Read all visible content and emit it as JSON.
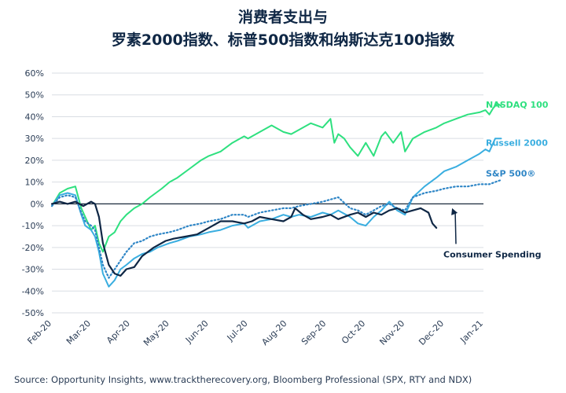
{
  "title_line1": "消费者支出与",
  "title_line2": "罗素2000指数、标普500指数和纳斯达克100指数",
  "source": "Source: Opportunity Insights, www.tracktherecovery.org, Bloomberg Professional (SPX, RTY and NDX)",
  "colors": {
    "nasdaq": "#2ee07f",
    "russell": "#3aaee0",
    "sp500": "#2f86c6",
    "consumer": "#0f2745",
    "grid": "#d9dde3",
    "zero": "#1a2a3c"
  },
  "chart_data": {
    "type": "line",
    "xlabel": "",
    "ylabel": "",
    "x_ticks": [
      "Feb-20",
      "Mar-20",
      "Apr-20",
      "May-20",
      "Jun-20",
      "Jul-20",
      "Aug-20",
      "Sep-20",
      "Oct-20",
      "Nov-20",
      "Dec-20",
      "Jan-21"
    ],
    "ylim": [
      -50,
      60
    ],
    "y_ticks": [
      60,
      50,
      40,
      30,
      20,
      10,
      0,
      -10,
      -20,
      -30,
      -40,
      -50
    ],
    "y_tick_labels": [
      "60%",
      "50%",
      "40%",
      "30%",
      "20%",
      "10%",
      "0%",
      "-10%",
      "-20%",
      "-30%",
      "-40%",
      "-50%"
    ],
    "grid": true,
    "annotation": "Consumer Spending",
    "series": [
      {
        "name": "NASDAQ 100",
        "key": "nasdaq",
        "style": "solid",
        "x": [
          0,
          0.2,
          0.4,
          0.6,
          0.75,
          0.85,
          1.0,
          1.1,
          1.2,
          1.3,
          1.45,
          1.6,
          1.75,
          1.9,
          2.1,
          2.3,
          2.5,
          2.8,
          3.0,
          3.2,
          3.5,
          3.8,
          4.0,
          4.3,
          4.6,
          4.9,
          5.0,
          5.3,
          5.6,
          5.9,
          6.1,
          6.3,
          6.6,
          6.9,
          7.1,
          7.2,
          7.3,
          7.45,
          7.6,
          7.8,
          8.0,
          8.2,
          8.4,
          8.5,
          8.7,
          8.9,
          9.0,
          9.2,
          9.5,
          9.8,
          10.0,
          10.3,
          10.6,
          10.9,
          11.05,
          11.15,
          11.25,
          11.35,
          11.45
        ],
        "values": [
          -1,
          5,
          7,
          8,
          -2,
          -6,
          -12,
          -10,
          -18,
          -22,
          -15,
          -13,
          -8,
          -5,
          -2,
          0,
          3,
          7,
          10,
          12,
          16,
          20,
          22,
          24,
          28,
          31,
          30,
          33,
          36,
          33,
          32,
          34,
          37,
          35,
          39,
          28,
          32,
          30,
          26,
          22,
          28,
          22,
          31,
          33,
          28,
          33,
          24,
          30,
          33,
          35,
          37,
          39,
          41,
          42,
          43,
          41,
          44,
          46,
          45
        ]
      },
      {
        "name": "Russell 2000",
        "key": "russell",
        "style": "solid",
        "x": [
          0,
          0.2,
          0.4,
          0.6,
          0.75,
          0.85,
          1.0,
          1.1,
          1.2,
          1.3,
          1.45,
          1.6,
          1.75,
          1.9,
          2.1,
          2.3,
          2.5,
          2.7,
          3.0,
          3.2,
          3.5,
          3.8,
          4.0,
          4.3,
          4.6,
          4.9,
          5.0,
          5.3,
          5.6,
          5.9,
          6.1,
          6.3,
          6.6,
          6.9,
          7.1,
          7.3,
          7.6,
          7.8,
          8.0,
          8.2,
          8.4,
          8.6,
          8.8,
          9.0,
          9.2,
          9.5,
          9.8,
          10.0,
          10.3,
          10.6,
          10.9,
          11.05,
          11.15,
          11.3,
          11.45
        ],
        "values": [
          -1,
          4,
          5,
          4,
          -5,
          -10,
          -12,
          -15,
          -22,
          -32,
          -38,
          -35,
          -30,
          -28,
          -25,
          -23,
          -22,
          -20,
          -18,
          -17,
          -15,
          -14,
          -13,
          -12,
          -10,
          -9,
          -11,
          -8,
          -7,
          -5,
          -6,
          -5,
          -6,
          -4,
          -5,
          -3,
          -6,
          -9,
          -10,
          -6,
          -3,
          1,
          -3,
          -5,
          3,
          8,
          12,
          15,
          17,
          20,
          23,
          25,
          24,
          30,
          30
        ]
      },
      {
        "name": "S&P 500®",
        "key": "sp500",
        "style": "dotted",
        "x": [
          0,
          0.2,
          0.4,
          0.6,
          0.75,
          0.85,
          1.0,
          1.1,
          1.2,
          1.3,
          1.45,
          1.6,
          1.75,
          1.9,
          2.1,
          2.3,
          2.5,
          2.7,
          3.0,
          3.2,
          3.5,
          3.8,
          4.0,
          4.3,
          4.6,
          4.9,
          5.0,
          5.3,
          5.6,
          5.9,
          6.1,
          6.3,
          6.6,
          6.9,
          7.1,
          7.3,
          7.6,
          7.8,
          8.0,
          8.2,
          8.4,
          8.6,
          8.8,
          9.0,
          9.2,
          9.5,
          9.8,
          10.0,
          10.3,
          10.6,
          10.9,
          11.05,
          11.15,
          11.3,
          11.45
        ],
        "values": [
          -1,
          3,
          4,
          3,
          -4,
          -8,
          -10,
          -12,
          -20,
          -28,
          -34,
          -30,
          -26,
          -22,
          -18,
          -17,
          -15,
          -14,
          -13,
          -12,
          -10,
          -9,
          -8,
          -7,
          -5,
          -5,
          -6,
          -4,
          -3,
          -2,
          -2,
          -1,
          0,
          1,
          2,
          3,
          -2,
          -3,
          -5,
          -3,
          -1,
          0,
          -2,
          -3,
          3,
          5,
          6,
          7,
          8,
          8,
          9,
          9,
          9,
          10,
          11
        ]
      },
      {
        "name": "Consumer Spending",
        "key": "consumer",
        "style": "solid",
        "x": [
          0,
          0.2,
          0.4,
          0.6,
          0.8,
          1.0,
          1.1,
          1.2,
          1.3,
          1.45,
          1.6,
          1.75,
          1.9,
          2.1,
          2.3,
          2.6,
          2.9,
          3.1,
          3.4,
          3.7,
          4.0,
          4.3,
          4.6,
          4.9,
          5.1,
          5.3,
          5.6,
          5.9,
          6.1,
          6.2,
          6.4,
          6.6,
          6.9,
          7.1,
          7.3,
          7.6,
          7.8,
          8.0,
          8.2,
          8.4,
          8.6,
          8.8,
          9.0,
          9.2,
          9.4,
          9.6,
          9.7,
          9.8
        ],
        "values": [
          0,
          1,
          0,
          1,
          -1,
          1,
          0,
          -6,
          -18,
          -28,
          -32,
          -33,
          -30,
          -29,
          -24,
          -20,
          -17,
          -16,
          -15,
          -14,
          -11,
          -8,
          -8,
          -9,
          -8,
          -6,
          -7,
          -8,
          -6,
          -2,
          -5,
          -7,
          -6,
          -5,
          -7,
          -5,
          -4,
          -6,
          -4,
          -5,
          -3,
          -2,
          -4,
          -3,
          -2,
          -4,
          -9,
          -11
        ]
      }
    ]
  },
  "label_positions_note": ""
}
